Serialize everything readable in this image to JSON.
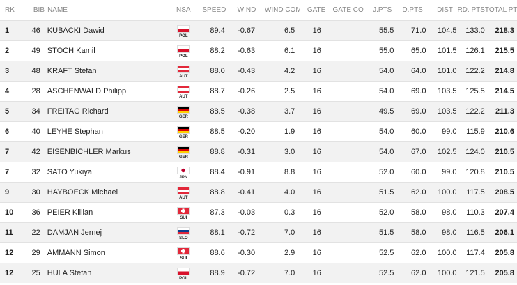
{
  "headers": {
    "rk": "RK",
    "bib": "BIB",
    "name": "NAME",
    "nsa": "NSA",
    "speed": "SPEED",
    "wind": "WIND",
    "wind_comp": "WIND COMP",
    "gate": "GATE",
    "gate_comp": "GATE COMP",
    "jpts": "J.PTS",
    "dpts": "D.PTS",
    "dist": "DIST",
    "rdpts": "RD. PTS",
    "total": "TOTAL PTS"
  },
  "flag_colors": {
    "POL": [
      "#ffffff",
      "#d8112b"
    ],
    "AUT": [
      "#e2283a",
      "#ffffff",
      "#e2283a"
    ],
    "GER": [
      "#000000",
      "#dd0000",
      "#ffce00"
    ],
    "JPN": [
      "#ffffff",
      "#bc002d"
    ],
    "SUI": [
      "#e2283a",
      "#ffffff"
    ],
    "SLO": [
      "#ffffff",
      "#0a3c8c",
      "#e2283a"
    ]
  },
  "rows": [
    {
      "rk": "1",
      "bib": "46",
      "name": "KUBACKI Dawid",
      "nsa": "POL",
      "speed": "89.4",
      "wind": "-0.67",
      "wind_comp": "6.5",
      "gate": "16",
      "gate_comp": "",
      "jpts": "55.5",
      "dpts": "71.0",
      "dist": "104.5",
      "rdpts": "133.0",
      "total": "218.3"
    },
    {
      "rk": "2",
      "bib": "49",
      "name": "STOCH Kamil",
      "nsa": "POL",
      "speed": "88.2",
      "wind": "-0.63",
      "wind_comp": "6.1",
      "gate": "16",
      "gate_comp": "",
      "jpts": "55.0",
      "dpts": "65.0",
      "dist": "101.5",
      "rdpts": "126.1",
      "total": "215.5"
    },
    {
      "rk": "3",
      "bib": "48",
      "name": "KRAFT Stefan",
      "nsa": "AUT",
      "speed": "88.0",
      "wind": "-0.43",
      "wind_comp": "4.2",
      "gate": "16",
      "gate_comp": "",
      "jpts": "54.0",
      "dpts": "64.0",
      "dist": "101.0",
      "rdpts": "122.2",
      "total": "214.8"
    },
    {
      "rk": "4",
      "bib": "28",
      "name": "ASCHENWALD Philipp",
      "nsa": "AUT",
      "speed": "88.7",
      "wind": "-0.26",
      "wind_comp": "2.5",
      "gate": "16",
      "gate_comp": "",
      "jpts": "54.0",
      "dpts": "69.0",
      "dist": "103.5",
      "rdpts": "125.5",
      "total": "214.5"
    },
    {
      "rk": "5",
      "bib": "34",
      "name": "FREITAG Richard",
      "nsa": "GER",
      "speed": "88.5",
      "wind": "-0.38",
      "wind_comp": "3.7",
      "gate": "16",
      "gate_comp": "",
      "jpts": "49.5",
      "dpts": "69.0",
      "dist": "103.5",
      "rdpts": "122.2",
      "total": "211.3"
    },
    {
      "rk": "6",
      "bib": "40",
      "name": "LEYHE Stephan",
      "nsa": "GER",
      "speed": "88.5",
      "wind": "-0.20",
      "wind_comp": "1.9",
      "gate": "16",
      "gate_comp": "",
      "jpts": "54.0",
      "dpts": "60.0",
      "dist": "99.0",
      "rdpts": "115.9",
      "total": "210.6"
    },
    {
      "rk": "7",
      "bib": "42",
      "name": "EISENBICHLER Markus",
      "nsa": "GER",
      "speed": "88.8",
      "wind": "-0.31",
      "wind_comp": "3.0",
      "gate": "16",
      "gate_comp": "",
      "jpts": "54.0",
      "dpts": "67.0",
      "dist": "102.5",
      "rdpts": "124.0",
      "total": "210.5"
    },
    {
      "rk": "7",
      "bib": "32",
      "name": "SATO Yukiya",
      "nsa": "JPN",
      "speed": "88.4",
      "wind": "-0.91",
      "wind_comp": "8.8",
      "gate": "16",
      "gate_comp": "",
      "jpts": "52.0",
      "dpts": "60.0",
      "dist": "99.0",
      "rdpts": "120.8",
      "total": "210.5"
    },
    {
      "rk": "9",
      "bib": "30",
      "name": "HAYBOECK Michael",
      "nsa": "AUT",
      "speed": "88.8",
      "wind": "-0.41",
      "wind_comp": "4.0",
      "gate": "16",
      "gate_comp": "",
      "jpts": "51.5",
      "dpts": "62.0",
      "dist": "100.0",
      "rdpts": "117.5",
      "total": "208.5"
    },
    {
      "rk": "10",
      "bib": "36",
      "name": "PEIER Killian",
      "nsa": "SUI",
      "speed": "87.3",
      "wind": "-0.03",
      "wind_comp": "0.3",
      "gate": "16",
      "gate_comp": "",
      "jpts": "52.0",
      "dpts": "58.0",
      "dist": "98.0",
      "rdpts": "110.3",
      "total": "207.4"
    },
    {
      "rk": "11",
      "bib": "22",
      "name": "DAMJAN Jernej",
      "nsa": "SLO",
      "speed": "88.1",
      "wind": "-0.72",
      "wind_comp": "7.0",
      "gate": "16",
      "gate_comp": "",
      "jpts": "51.5",
      "dpts": "58.0",
      "dist": "98.0",
      "rdpts": "116.5",
      "total": "206.1"
    },
    {
      "rk": "12",
      "bib": "29",
      "name": "AMMANN Simon",
      "nsa": "SUI",
      "speed": "88.6",
      "wind": "-0.30",
      "wind_comp": "2.9",
      "gate": "16",
      "gate_comp": "",
      "jpts": "52.5",
      "dpts": "62.0",
      "dist": "100.0",
      "rdpts": "117.4",
      "total": "205.8"
    },
    {
      "rk": "12",
      "bib": "25",
      "name": "HULA Stefan",
      "nsa": "POL",
      "speed": "88.9",
      "wind": "-0.72",
      "wind_comp": "7.0",
      "gate": "16",
      "gate_comp": "",
      "jpts": "52.5",
      "dpts": "62.0",
      "dist": "100.0",
      "rdpts": "121.5",
      "total": "205.8"
    }
  ]
}
